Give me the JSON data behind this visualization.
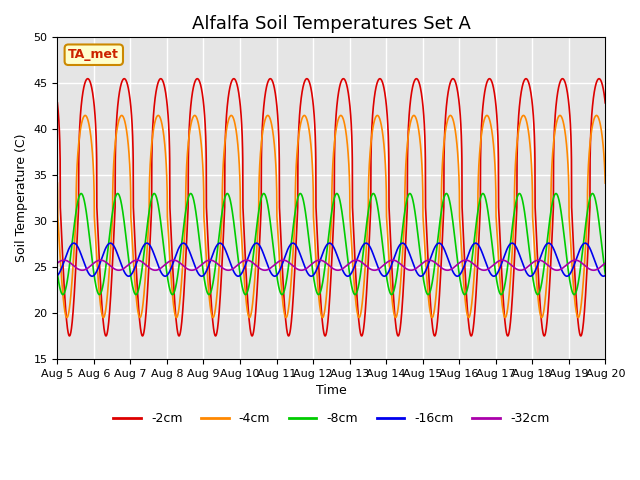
{
  "title": "Alfalfa Soil Temperatures Set A",
  "xlabel": "Time",
  "ylabel": "Soil Temperature (C)",
  "ylim": [
    15,
    50
  ],
  "xlim_days": [
    0,
    15
  ],
  "x_tick_labels": [
    "Aug 5",
    "Aug 6",
    "Aug 7",
    "Aug 8",
    "Aug 9",
    "Aug 10",
    "Aug 11",
    "Aug 12",
    "Aug 13",
    "Aug 14",
    "Aug 15",
    "Aug 16",
    "Aug 17",
    "Aug 18",
    "Aug 19",
    "Aug 20"
  ],
  "annotation_label": "TA_met",
  "series": [
    {
      "label": "-2cm",
      "color": "#dd0000",
      "mean": 31.5,
      "amplitude": 14.0,
      "phase_shift": 0.0,
      "sharpness": 3.5
    },
    {
      "label": "-4cm",
      "color": "#ff8800",
      "mean": 30.5,
      "amplitude": 11.0,
      "phase_shift": 0.07,
      "sharpness": 2.5
    },
    {
      "label": "-8cm",
      "color": "#00cc00",
      "mean": 27.5,
      "amplitude": 5.5,
      "phase_shift": 0.18,
      "sharpness": 1.0
    },
    {
      "label": "-16cm",
      "color": "#0000ee",
      "mean": 25.8,
      "amplitude": 1.8,
      "phase_shift": 0.38,
      "sharpness": 1.0
    },
    {
      "label": "-32cm",
      "color": "#aa00aa",
      "mean": 25.2,
      "amplitude": 0.55,
      "phase_shift": 0.65,
      "sharpness": 1.0
    }
  ],
  "background_color": "#ffffff",
  "plot_bg_color": "#e5e5e5",
  "grid_color": "#ffffff",
  "title_fontsize": 13,
  "label_fontsize": 9,
  "tick_fontsize": 8
}
